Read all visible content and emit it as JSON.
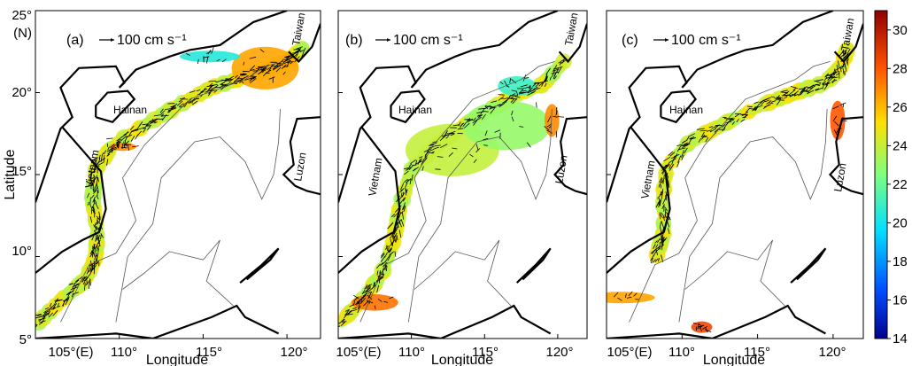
{
  "figure": {
    "y_axis_label": "Latitude",
    "y_unit_label": "(N)",
    "x_unit_label": "(E)",
    "x_axis_label": "Longitude"
  },
  "chart_data": [
    {
      "type": "heatmap",
      "panel_label": "(a)",
      "scale_label": "100 cm s⁻¹",
      "xlabel": "Longitude",
      "ylabel": "Latitude",
      "xlim": [
        105,
        122
      ],
      "ylim": [
        5,
        25
      ],
      "x_ticks": [
        "105°(E)",
        "110°",
        "115°",
        "120°"
      ],
      "y_ticks": [
        "25°",
        "20°",
        "15°",
        "10°",
        "5°"
      ],
      "place_labels": [
        "Hainan",
        "Vietnam",
        "Luzon",
        "Taiwan"
      ],
      "band": [
        [
          105.2,
          6.0
        ],
        [
          106.5,
          7.3
        ],
        [
          108.0,
          8.6
        ],
        [
          108.6,
          10.0
        ],
        [
          108.7,
          11.5
        ],
        [
          108.4,
          13.5
        ],
        [
          108.6,
          15.3
        ],
        [
          109.6,
          16.8
        ],
        [
          111.5,
          18.0
        ],
        [
          113.5,
          19.2
        ],
        [
          115.5,
          20.3
        ],
        [
          117.0,
          20.8
        ],
        [
          118.5,
          21.3
        ],
        [
          120.0,
          21.9
        ],
        [
          121.0,
          22.8
        ]
      ],
      "patches": [
        {
          "lon": 118.7,
          "lat": 21.5,
          "rx": 2.0,
          "ry": 1.3,
          "temp": 26.5
        },
        {
          "lon": 115.4,
          "lat": 22.2,
          "rx": 1.8,
          "ry": 0.35,
          "temp": 20.5
        },
        {
          "lon": 110.2,
          "lat": 16.7,
          "rx": 0.8,
          "ry": 0.25,
          "temp": 27.0
        }
      ]
    },
    {
      "type": "heatmap",
      "panel_label": "(b)",
      "scale_label": "100 cm s⁻¹",
      "xlabel": "Longitude",
      "ylabel": "",
      "xlim": [
        105,
        122
      ],
      "ylim": [
        5,
        25
      ],
      "x_ticks": [
        "105°(E)",
        "110°",
        "115°",
        "120°"
      ],
      "y_ticks": [],
      "place_labels": [
        "Hainan",
        "Vietnam",
        "Luzon",
        "Taiwan"
      ],
      "band": [
        [
          105.2,
          6.0
        ],
        [
          106.8,
          7.5
        ],
        [
          108.0,
          9.0
        ],
        [
          108.8,
          11.0
        ],
        [
          109.2,
          13.0
        ],
        [
          110.0,
          15.3
        ],
        [
          112.0,
          17.0
        ],
        [
          114.5,
          18.5
        ],
        [
          117.0,
          19.8
        ],
        [
          119.0,
          20.5
        ],
        [
          120.5,
          22.0
        ]
      ],
      "patches": [
        {
          "lon": 112.8,
          "lat": 16.5,
          "rx": 3.2,
          "ry": 1.6,
          "temp": 24.0
        },
        {
          "lon": 116.5,
          "lat": 18.0,
          "rx": 3.0,
          "ry": 1.5,
          "temp": 23.0
        },
        {
          "lon": 117.2,
          "lat": 20.4,
          "rx": 1.3,
          "ry": 0.6,
          "temp": 21.0
        },
        {
          "lon": 119.6,
          "lat": 18.3,
          "rx": 0.5,
          "ry": 1.0,
          "temp": 27.0
        },
        {
          "lon": 107.5,
          "lat": 7.2,
          "rx": 1.6,
          "ry": 0.5,
          "temp": 27.5
        }
      ]
    },
    {
      "type": "heatmap",
      "panel_label": "(c)",
      "scale_label": "100 cm s⁻¹",
      "xlabel": "Longitude",
      "ylabel": "",
      "xlim": [
        105,
        122
      ],
      "ylim": [
        5,
        25
      ],
      "x_ticks": [
        "105°(E)",
        "110°",
        "115°",
        "120°"
      ],
      "y_ticks": [],
      "place_labels": [
        "Hainan",
        "Vietnam",
        "Luzon",
        "Taiwan"
      ],
      "band": [
        [
          108.3,
          10.0
        ],
        [
          108.8,
          11.5
        ],
        [
          108.7,
          13.5
        ],
        [
          109.0,
          15.5
        ],
        [
          110.5,
          17.0
        ],
        [
          113.0,
          18.2
        ],
        [
          115.5,
          19.3
        ],
        [
          117.5,
          20.0
        ],
        [
          119.5,
          20.6
        ],
        [
          120.5,
          21.5
        ],
        [
          121.0,
          22.8
        ]
      ],
      "patches": [
        {
          "lon": 120.3,
          "lat": 18.3,
          "rx": 0.5,
          "ry": 1.2,
          "temp": 28.0
        },
        {
          "lon": 106.0,
          "lat": 7.5,
          "rx": 2.2,
          "ry": 0.35,
          "temp": 26.5
        },
        {
          "lon": 111.3,
          "lat": 5.7,
          "rx": 0.7,
          "ry": 0.35,
          "temp": 28.5
        }
      ]
    }
  ],
  "colorbar": {
    "min": 14,
    "max": 31,
    "tick_labels": [
      "30",
      "28",
      "26",
      "24",
      "22",
      "20",
      "18",
      "16",
      "14"
    ],
    "colors": [
      "#00008f",
      "#0050ff",
      "#00e0ff",
      "#7fff7f",
      "#ffe000",
      "#ff5000",
      "#8f0000"
    ]
  }
}
